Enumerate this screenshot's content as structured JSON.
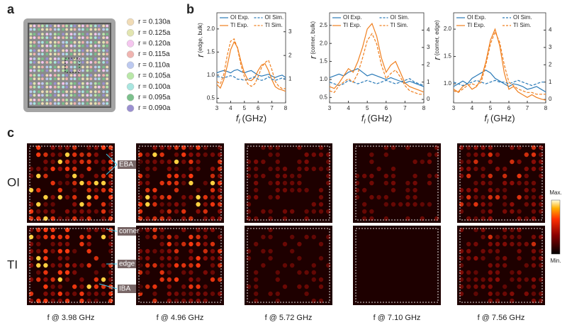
{
  "panel_labels": [
    "a",
    "b",
    "c"
  ],
  "panel_a": {
    "legend": [
      {
        "label": "r = 0.130a",
        "color": "#f1dcb6"
      },
      {
        "label": "r = 0.125a",
        "color": "#e2e5b0"
      },
      {
        "label": "r = 0.120a",
        "color": "#f5c6ef"
      },
      {
        "label": "r = 0.115a",
        "color": "#f0b4b0"
      },
      {
        "label": "r = 0.110a",
        "color": "#bcc9f0"
      },
      {
        "label": "r = 0.105a",
        "color": "#b9e8a8"
      },
      {
        "label": "r = 0.100a",
        "color": "#a8e6e0"
      },
      {
        "label": "r = 0.095a",
        "color": "#7cc08c"
      },
      {
        "label": "r = 0.090a",
        "color": "#9a90d0"
      }
    ]
  },
  "chart_data": [
    {
      "type": "line",
      "ylabel": {
        "symbol": "r",
        "sub": "(edge, bulk)"
      },
      "xlabel": {
        "symbol": "f",
        "sub": "l",
        "unit": "(GHz)"
      },
      "x": [
        3,
        3.25,
        3.5,
        3.75,
        4,
        4.25,
        4.5,
        4.75,
        5,
        5.25,
        5.5,
        5.75,
        6,
        6.25,
        6.5,
        6.75,
        7,
        7.25,
        7.5,
        7.75,
        8
      ],
      "xlim": [
        3,
        8
      ],
      "xticks": [
        3,
        4,
        5,
        6,
        7,
        8
      ],
      "ylim": [
        0.4,
        2.35
      ],
      "yticks": [
        0.5,
        {
          "value": 1,
          "label": "1.0"
        },
        1.5,
        {
          "value": 2,
          "label": "2.0"
        }
      ],
      "y2lim": [
        0,
        3.8
      ],
      "y2ticks": [
        1,
        2,
        3
      ],
      "series": [
        {
          "name": "OI Exp.",
          "color": "#2a7ab8",
          "style": "solid",
          "values": [
            1.05,
            1.08,
            1.1,
            1.08,
            1.05,
            1.1,
            1.12,
            1.08,
            1.05,
            1.08,
            1.1,
            1.05,
            1.0,
            0.98,
            1.0,
            1.02,
            0.98,
            0.95,
            0.98,
            1.0,
            0.95
          ]
        },
        {
          "name": "TI Exp.",
          "color": "#f07f1e",
          "style": "solid",
          "values": [
            0.8,
            0.72,
            0.9,
            1.2,
            1.55,
            1.72,
            1.6,
            1.3,
            1.05,
            0.9,
            0.88,
            0.95,
            1.1,
            1.22,
            1.25,
            1.1,
            0.9,
            0.75,
            0.7,
            0.68,
            0.65
          ]
        },
        {
          "name": "OI Sim.",
          "color": "#2a7ab8",
          "style": "dashed",
          "axis": "y2",
          "values": [
            1.1,
            1.1,
            1.05,
            1.1,
            1.15,
            1.1,
            1.0,
            1.0,
            0.95,
            1.0,
            1.05,
            1.1,
            1.0,
            0.95,
            1.0,
            1.1,
            1.0,
            0.95,
            1.0,
            1.05,
            1.0
          ]
        },
        {
          "name": "TI Sim.",
          "color": "#f07f1e",
          "style": "dashed",
          "axis": "y2",
          "values": [
            0.9,
            0.8,
            1.2,
            2.0,
            2.6,
            2.7,
            2.3,
            1.6,
            1.1,
            0.8,
            0.7,
            0.8,
            1.1,
            1.5,
            1.7,
            1.8,
            1.4,
            0.9,
            0.7,
            0.6,
            0.6
          ]
        }
      ]
    },
    {
      "type": "line",
      "ylabel": {
        "symbol": "r",
        "sub": "(corner, bulk)"
      },
      "xlabel": {
        "symbol": "f",
        "sub": "l",
        "unit": "(GHz)"
      },
      "x": [
        3,
        3.25,
        3.5,
        3.75,
        4,
        4.25,
        4.5,
        4.75,
        5,
        5.25,
        5.5,
        5.75,
        6,
        6.25,
        6.5,
        6.75,
        7,
        7.25,
        7.5,
        7.75,
        8
      ],
      "xlim": [
        3,
        8
      ],
      "xticks": [
        3,
        4,
        5,
        6,
        7,
        8
      ],
      "ylim": [
        0.35,
        2.85
      ],
      "yticks": [
        0.5,
        {
          "value": 1,
          "label": "1.0"
        },
        1.5,
        {
          "value": 2,
          "label": "2.0"
        },
        2.5
      ],
      "y2lim": [
        -0.2,
        5
      ],
      "y2ticks": [
        0,
        1,
        2,
        3,
        4
      ],
      "series": [
        {
          "name": "OI Exp.",
          "color": "#2a7ab8",
          "style": "solid",
          "values": [
            1.05,
            1.1,
            1.15,
            1.1,
            1.2,
            1.25,
            1.3,
            1.2,
            1.1,
            1.15,
            1.1,
            1.05,
            1.0,
            1.05,
            1.0,
            0.95,
            0.9,
            0.95,
            0.9,
            0.85,
            0.8
          ]
        },
        {
          "name": "TI Exp.",
          "color": "#f07f1e",
          "style": "solid",
          "values": [
            0.8,
            0.75,
            0.9,
            1.1,
            1.3,
            1.2,
            1.5,
            1.9,
            2.4,
            2.55,
            2.2,
            1.6,
            1.2,
            1.4,
            1.5,
            1.2,
            0.9,
            0.8,
            0.75,
            0.7,
            0.65
          ]
        },
        {
          "name": "OI Sim.",
          "color": "#2a7ab8",
          "style": "dashed",
          "axis": "y2",
          "values": [
            1.0,
            0.9,
            0.8,
            0.9,
            1.1,
            1.0,
            0.9,
            1.0,
            1.1,
            1.0,
            0.9,
            1.0,
            1.1,
            1.0,
            0.9,
            1.0,
            1.1,
            1.2,
            1.0,
            0.9,
            0.8
          ]
        },
        {
          "name": "TI Sim.",
          "color": "#f07f1e",
          "style": "dashed",
          "axis": "y2",
          "values": [
            0.5,
            0.4,
            0.8,
            1.0,
            1.2,
            1.0,
            1.5,
            2.4,
            3.4,
            3.8,
            3.2,
            2.0,
            1.2,
            1.5,
            1.7,
            1.3,
            0.8,
            0.5,
            0.4,
            0.3,
            0.3
          ]
        }
      ]
    },
    {
      "type": "line",
      "ylabel": {
        "symbol": "r",
        "sub": "(corner, edge)"
      },
      "xlabel": {
        "symbol": "f",
        "sub": "l",
        "unit": "(GHz)"
      },
      "x": [
        3,
        3.25,
        3.5,
        3.75,
        4,
        4.25,
        4.5,
        4.75,
        5,
        5.25,
        5.5,
        5.75,
        6,
        6.25,
        6.5,
        6.75,
        7,
        7.25,
        7.5,
        7.75,
        8
      ],
      "xlim": [
        3,
        8
      ],
      "xticks": [
        3,
        4,
        5,
        6,
        7,
        8
      ],
      "ylim": [
        0.65,
        2.3
      ],
      "yticks": [
        {
          "value": 1,
          "label": "1.0"
        },
        1.5,
        {
          "value": 2,
          "label": "2.0"
        }
      ],
      "y2lim": [
        -0.2,
        5
      ],
      "y2ticks": [
        0,
        1,
        2,
        3,
        4
      ],
      "series": [
        {
          "name": "OI Exp.",
          "color": "#2a7ab8",
          "style": "solid",
          "values": [
            0.95,
            1.0,
            1.05,
            1.0,
            1.1,
            1.15,
            1.2,
            1.25,
            1.2,
            1.1,
            1.05,
            1.0,
            0.95,
            1.0,
            0.98,
            0.95,
            0.9,
            0.92,
            0.95,
            0.9,
            0.85
          ]
        },
        {
          "name": "TI Exp.",
          "color": "#f07f1e",
          "style": "solid",
          "values": [
            0.9,
            0.85,
            0.95,
            1.0,
            0.9,
            0.95,
            1.1,
            1.4,
            1.8,
            2.0,
            1.7,
            1.2,
            0.9,
            0.95,
            0.85,
            0.8,
            0.75,
            0.8,
            0.75,
            0.72,
            0.7
          ]
        },
        {
          "name": "OI Sim.",
          "color": "#2a7ab8",
          "style": "dashed",
          "axis": "y2",
          "values": [
            1.0,
            0.9,
            0.8,
            0.9,
            1.0,
            1.1,
            1.0,
            0.9,
            1.0,
            1.1,
            1.0,
            1.0,
            0.9,
            1.0,
            1.1,
            1.0,
            0.9,
            0.8,
            0.9,
            1.0,
            1.0
          ]
        },
        {
          "name": "TI Sim.",
          "color": "#f07f1e",
          "style": "dashed",
          "axis": "y2",
          "values": [
            0.5,
            0.4,
            0.6,
            0.8,
            0.9,
            0.8,
            1.0,
            2.0,
            3.2,
            3.9,
            3.3,
            2.0,
            1.0,
            0.8,
            0.6,
            0.5,
            0.4,
            0.4,
            0.3,
            0.3,
            0.3
          ]
        }
      ]
    }
  ],
  "panel_c": {
    "rows": [
      "OI",
      "TI"
    ],
    "columns": [
      "f @ 3.98 GHz",
      "f @ 4.96 GHz",
      "f @ 5.72 GHz",
      "f @ 7.10 GHz",
      "f @ 7.56 GHz"
    ],
    "annotations": [
      "EBA",
      "corner",
      "edge",
      "IBA"
    ],
    "colorbar": {
      "max": "Max.",
      "min": "Min."
    }
  }
}
